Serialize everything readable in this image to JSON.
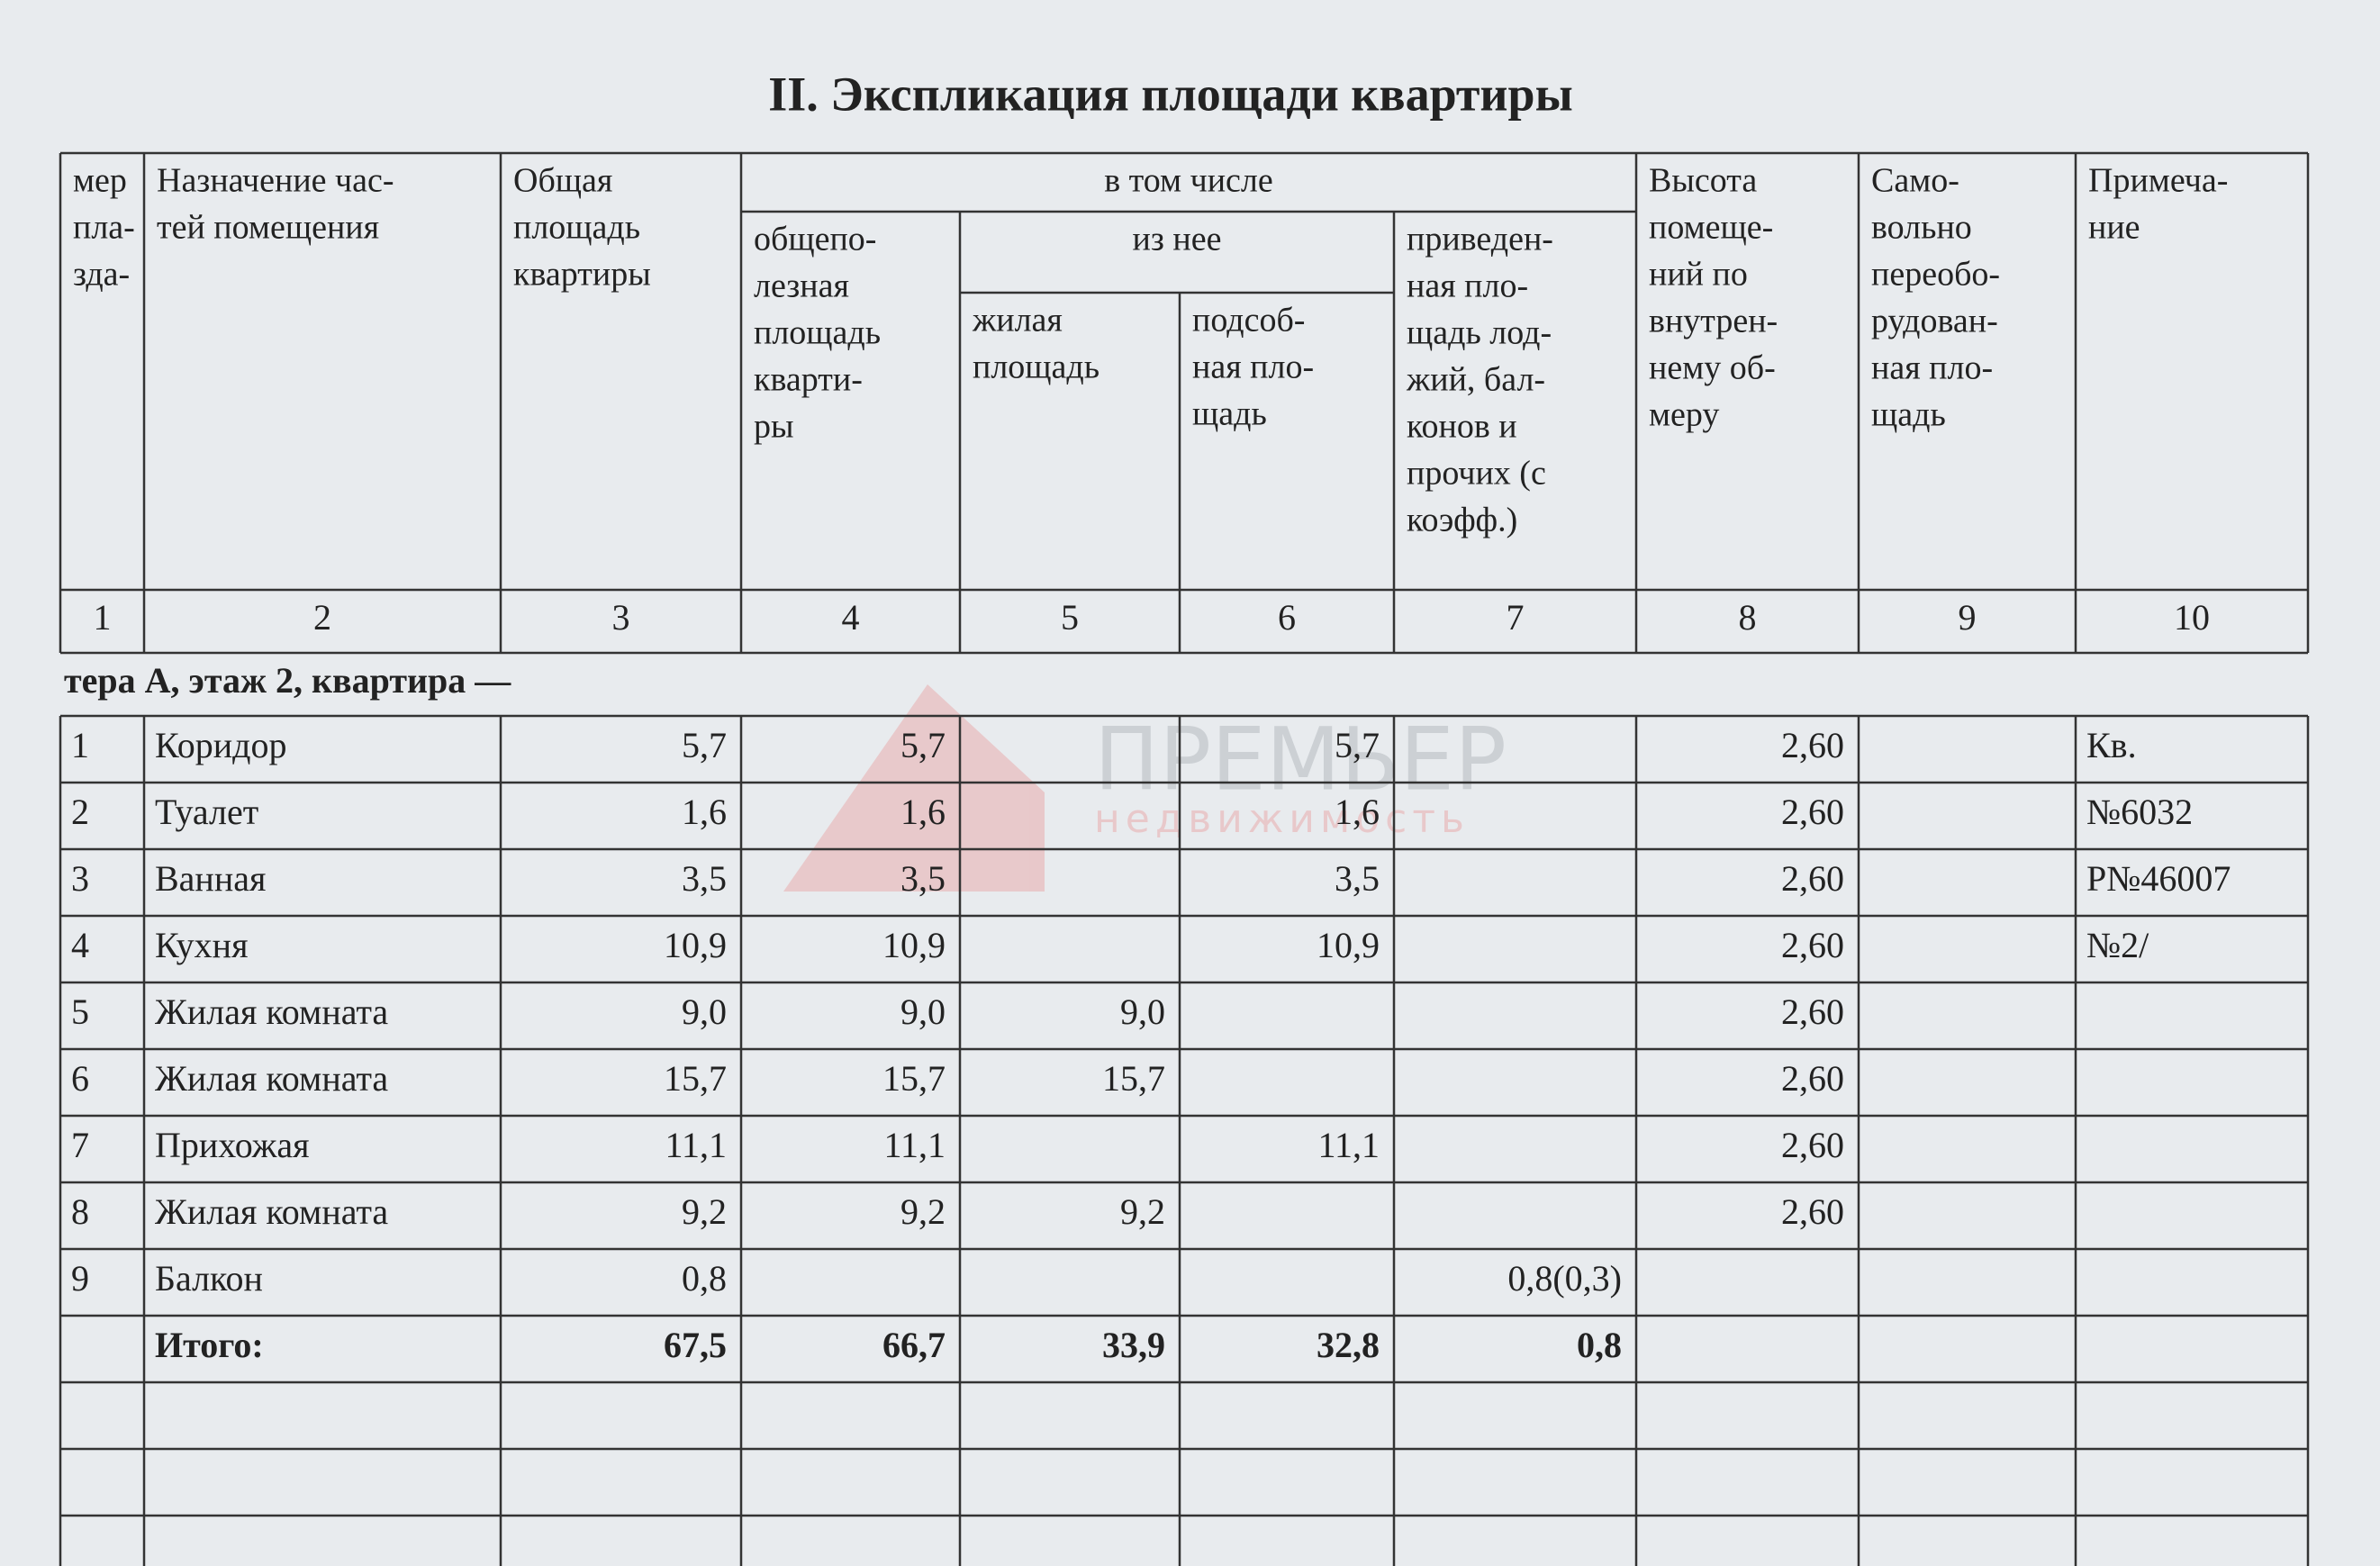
{
  "title": "II. Экспликация площади квартиры",
  "header": [
    {
      "lines": [
        "мер",
        "пла-",
        "зда-"
      ]
    },
    {
      "lines": [
        "Назначение час-",
        "тей помещения"
      ]
    },
    {
      "lines": [
        "Общая",
        "площадь",
        "квартиры"
      ]
    },
    {
      "lines": [
        "в том числе"
      ]
    },
    {
      "lines": [
        "общепо-",
        "лезная",
        "площадь",
        "кварти-",
        "ры"
      ]
    },
    {
      "lines": [
        "из нее"
      ]
    },
    {
      "lines": [
        "жилая",
        "площадь"
      ]
    },
    {
      "lines": [
        "подсоб-",
        "ная пло-",
        "щадь"
      ]
    },
    {
      "lines": [
        "приведен-",
        "ная пло-",
        "щадь лод-",
        "жий, бал-",
        "конов и",
        "прочих (с",
        "коэфф.)"
      ]
    },
    {
      "lines": [
        "Высота",
        "помеще-",
        "ний по",
        "внутрен-",
        "нему об-",
        "меру"
      ]
    },
    {
      "lines": [
        "Само-",
        "вольно",
        "переобо-",
        "рудован-",
        "ная пло-",
        "щадь"
      ]
    },
    {
      "lines": [
        "Примеча-",
        "ние"
      ]
    }
  ],
  "column_numbers": [
    1,
    2,
    3,
    4,
    5,
    6,
    7,
    8,
    9,
    10
  ],
  "section": "тера А, этаж 2, квартира —",
  "rows": [
    [
      "1",
      "Коридор",
      "5,7",
      "5,7",
      null,
      "5,7",
      null,
      "2,60",
      null,
      "Кв."
    ],
    [
      "2",
      "Туалет",
      "1,6",
      "1,6",
      null,
      "1,6",
      null,
      "2,60",
      null,
      "№6032"
    ],
    [
      "3",
      "Ванная",
      "3,5",
      "3,5",
      null,
      "3,5",
      null,
      "2,60",
      null,
      "Р№46007"
    ],
    [
      "4",
      "Кухня",
      "10,9",
      "10,9",
      null,
      "10,9",
      null,
      "2,60",
      null,
      "№2/"
    ],
    [
      "5",
      "Жилая комната",
      "9,0",
      "9,0",
      "9,0",
      null,
      null,
      "2,60",
      null,
      null
    ],
    [
      "6",
      "Жилая комната",
      "15,7",
      "15,7",
      "15,7",
      null,
      null,
      "2,60",
      null,
      null
    ],
    [
      "7",
      "Прихожая",
      "11,1",
      "11,1",
      null,
      "11,1",
      null,
      "2,60",
      null,
      null
    ],
    [
      "8",
      "Жилая комната",
      "9,2",
      "9,2",
      "9,2",
      null,
      null,
      "2,60",
      null,
      null
    ],
    [
      "9",
      "Балкон",
      "0,8",
      null,
      null,
      null,
      "0,8(0,3)",
      null,
      null,
      null
    ],
    [
      null,
      "Итого:",
      "67,5",
      "66,7",
      "33,9",
      "32,8",
      "0,8",
      null,
      null,
      null
    ]
  ],
  "watermark": {
    "brand": "ПРЕМЬЕР",
    "tagline": "недвижимость"
  }
}
